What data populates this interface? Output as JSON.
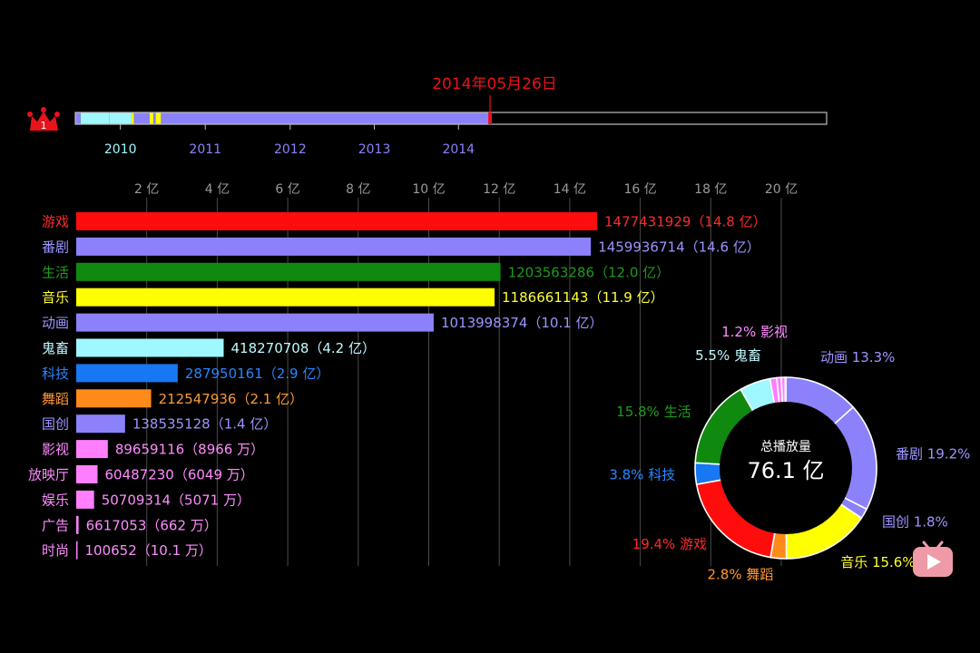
{
  "colors": {
    "background": "#000000",
    "date_marker": "#e8121b",
    "timeline_fill": "#8b82fb",
    "timeline_border": "#bdbdbd",
    "crown": "#e8121b",
    "player_icon": "#ef9aa7"
  },
  "crown_badge": "1",
  "player_icon": "video-play-icon",
  "timeline": {
    "current_date": "2014年05月26日",
    "years": [
      {
        "label": "2010",
        "color": "#9ff7ff",
        "pos": 0.06
      },
      {
        "label": "2011",
        "color": "#8b82fb",
        "pos": 0.173
      },
      {
        "label": "2012",
        "color": "#8b82fb",
        "pos": 0.286
      },
      {
        "label": "2013",
        "color": "#8b82fb",
        "pos": 0.398
      },
      {
        "label": "2014",
        "color": "#8b82fb",
        "pos": 0.51
      }
    ],
    "progress": 0.552,
    "segments": [
      {
        "from": 0.0,
        "to": 0.007,
        "color": "#8b82fb"
      },
      {
        "from": 0.007,
        "to": 0.045,
        "color": "#9ff7ff"
      },
      {
        "from": 0.045,
        "to": 0.075,
        "color": "#9ff7ff"
      },
      {
        "from": 0.075,
        "to": 0.078,
        "color": "#ffff00"
      },
      {
        "from": 0.078,
        "to": 0.099,
        "color": "#8b82fb"
      },
      {
        "from": 0.099,
        "to": 0.104,
        "color": "#ffff00"
      },
      {
        "from": 0.104,
        "to": 0.107,
        "color": "#8b82fb"
      },
      {
        "from": 0.107,
        "to": 0.114,
        "color": "#ffff00"
      },
      {
        "from": 0.114,
        "to": 0.552,
        "color": "#8b82fb"
      }
    ]
  },
  "chart_data": [
    {
      "type": "bar",
      "orientation": "horizontal",
      "xlim": [
        0,
        20
      ],
      "x_ticks": [
        "2 亿",
        "4 亿",
        "6 亿",
        "8 亿",
        "10 亿",
        "12 亿",
        "14 亿",
        "16 亿",
        "18 亿",
        "20 亿"
      ],
      "x_tick_values": [
        2,
        4,
        6,
        8,
        10,
        12,
        14,
        16,
        18,
        20
      ],
      "categories": [
        "游戏",
        "番剧",
        "生活",
        "音乐",
        "动画",
        "鬼畜",
        "科技",
        "舞蹈",
        "国创",
        "影视",
        "放映厅",
        "娱乐",
        "广告",
        "时尚"
      ],
      "values": [
        14.77431929,
        14.59936714,
        12.03563286,
        11.86661143,
        10.13998374,
        4.18270708,
        2.87950161,
        2.12547936,
        1.38535128,
        0.89659116,
        0.6048723,
        0.50709314,
        0.06617053,
        0.00100652
      ],
      "value_labels": [
        "1477431929（14.8 亿）",
        "1459936714（14.6 亿）",
        "1203563286（12.0 亿）",
        "1186661143（11.9 亿）",
        "1013998374（10.1 亿）",
        "418270708（4.2 亿）",
        "287950161（2.9 亿）",
        "212547936（2.1 亿）",
        "138535128（1.4 亿）",
        "89659116（8966 万）",
        "60487230（6049 万）",
        "50709314（5071 万）",
        "6617053（662 万）",
        "100652（10.1 万）"
      ],
      "colors": [
        "#ff0d0d",
        "#8b82fb",
        "#0f8a0f",
        "#ffff00",
        "#8b82fb",
        "#9ff7ff",
        "#1877f2",
        "#ff8a1c",
        "#8b82fb",
        "#ff7fff",
        "#ff7fff",
        "#ff7fff",
        "#ff7fff",
        "#ff7fff"
      ],
      "label_colors": [
        "#ff2a2a",
        "#9c95ff",
        "#1f9a1f",
        "#ffff33",
        "#9c95ff",
        "#bffaff",
        "#2a86ff",
        "#ff9a33",
        "#9c95ff",
        "#ff8cff",
        "#ff8cff",
        "#ff8cff",
        "#ff8cff",
        "#ff8cff"
      ]
    },
    {
      "type": "pie",
      "donut": true,
      "center_title": "总播放量",
      "center_value": "76.1 亿",
      "slices": [
        {
          "name": "动画",
          "percent": 13.3,
          "label": "动画 13.3%",
          "color": "#8b82fb",
          "label_color": "#9c95ff"
        },
        {
          "name": "番剧",
          "percent": 19.2,
          "label": "番剧 19.2%",
          "color": "#8b82fb",
          "label_color": "#9c95ff"
        },
        {
          "name": "国创",
          "percent": 1.8,
          "label": "国创 1.8%",
          "color": "#8b82fb",
          "label_color": "#9c95ff"
        },
        {
          "name": "音乐",
          "percent": 15.6,
          "label": "音乐 15.6%",
          "color": "#ffff00",
          "label_color": "#ffff33"
        },
        {
          "name": "舞蹈",
          "percent": 2.8,
          "label": "2.8%  舞蹈",
          "color": "#ff8a1c",
          "label_color": "#ff9a33"
        },
        {
          "name": "游戏",
          "percent": 19.4,
          "label": "19.4%  游戏",
          "color": "#ff0d0d",
          "label_color": "#ff2a2a"
        },
        {
          "name": "科技",
          "percent": 3.8,
          "label": "3.8%  科技",
          "color": "#1877f2",
          "label_color": "#2a86ff"
        },
        {
          "name": "生活",
          "percent": 15.8,
          "label": "15.8%  生活",
          "color": "#0f8a0f",
          "label_color": "#1f9a1f"
        },
        {
          "name": "鬼畜",
          "percent": 5.5,
          "label": "5.5%  鬼畜",
          "color": "#9ff7ff",
          "label_color": "#bffaff"
        },
        {
          "name": "影视",
          "percent": 1.2,
          "label": "1.2%  影视",
          "color": "#ff7fff",
          "label_color": "#ff8cff"
        },
        {
          "name": "放映厅",
          "percent": 0.8,
          "label": "",
          "color": "#ff7fff",
          "label_color": "#ff8cff"
        },
        {
          "name": "娱乐",
          "percent": 0.7,
          "label": "",
          "color": "#ff7fff",
          "label_color": "#ff8cff"
        },
        {
          "name": "广告",
          "percent": 0.1,
          "label": "",
          "color": "#ff7fff",
          "label_color": "#ff8cff"
        }
      ]
    }
  ]
}
